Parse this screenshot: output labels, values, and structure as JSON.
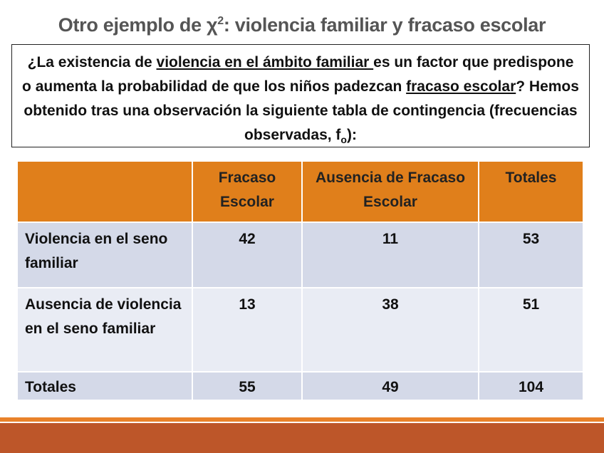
{
  "title": {
    "prefix": "Otro ejemplo de χ",
    "superscript": "2",
    "suffix": ": violencia familiar y fracaso escolar"
  },
  "question": {
    "part1": "¿La existencia de ",
    "underline1": "violencia en el ámbito familiar ",
    "part2": "es un factor que predispone o aumenta la probabilidad de que los niños padezcan ",
    "underline2": "fracaso escolar",
    "part3": "? Hemos obtenido tras una observación la siguiente tabla de contingencia (frecuencias observadas, f",
    "subscript": "o",
    "part4": "):"
  },
  "table": {
    "headers": [
      "",
      "Fracaso Escolar",
      "Ausencia de Fracaso Escolar",
      "Totales"
    ],
    "rows": [
      [
        "Violencia en el seno familiar",
        "42",
        "11",
        "53"
      ],
      [
        "Ausencia de violencia en el seno familiar",
        "13",
        "38",
        "51"
      ],
      [
        "Totales",
        "55",
        "49",
        "104"
      ]
    ]
  },
  "colors": {
    "header": "#e07f1b",
    "row_dark": "#d4d9e8",
    "row_light": "#e9ecf4",
    "footer_thin": "#e9822a",
    "footer_thick": "#bd5629"
  }
}
